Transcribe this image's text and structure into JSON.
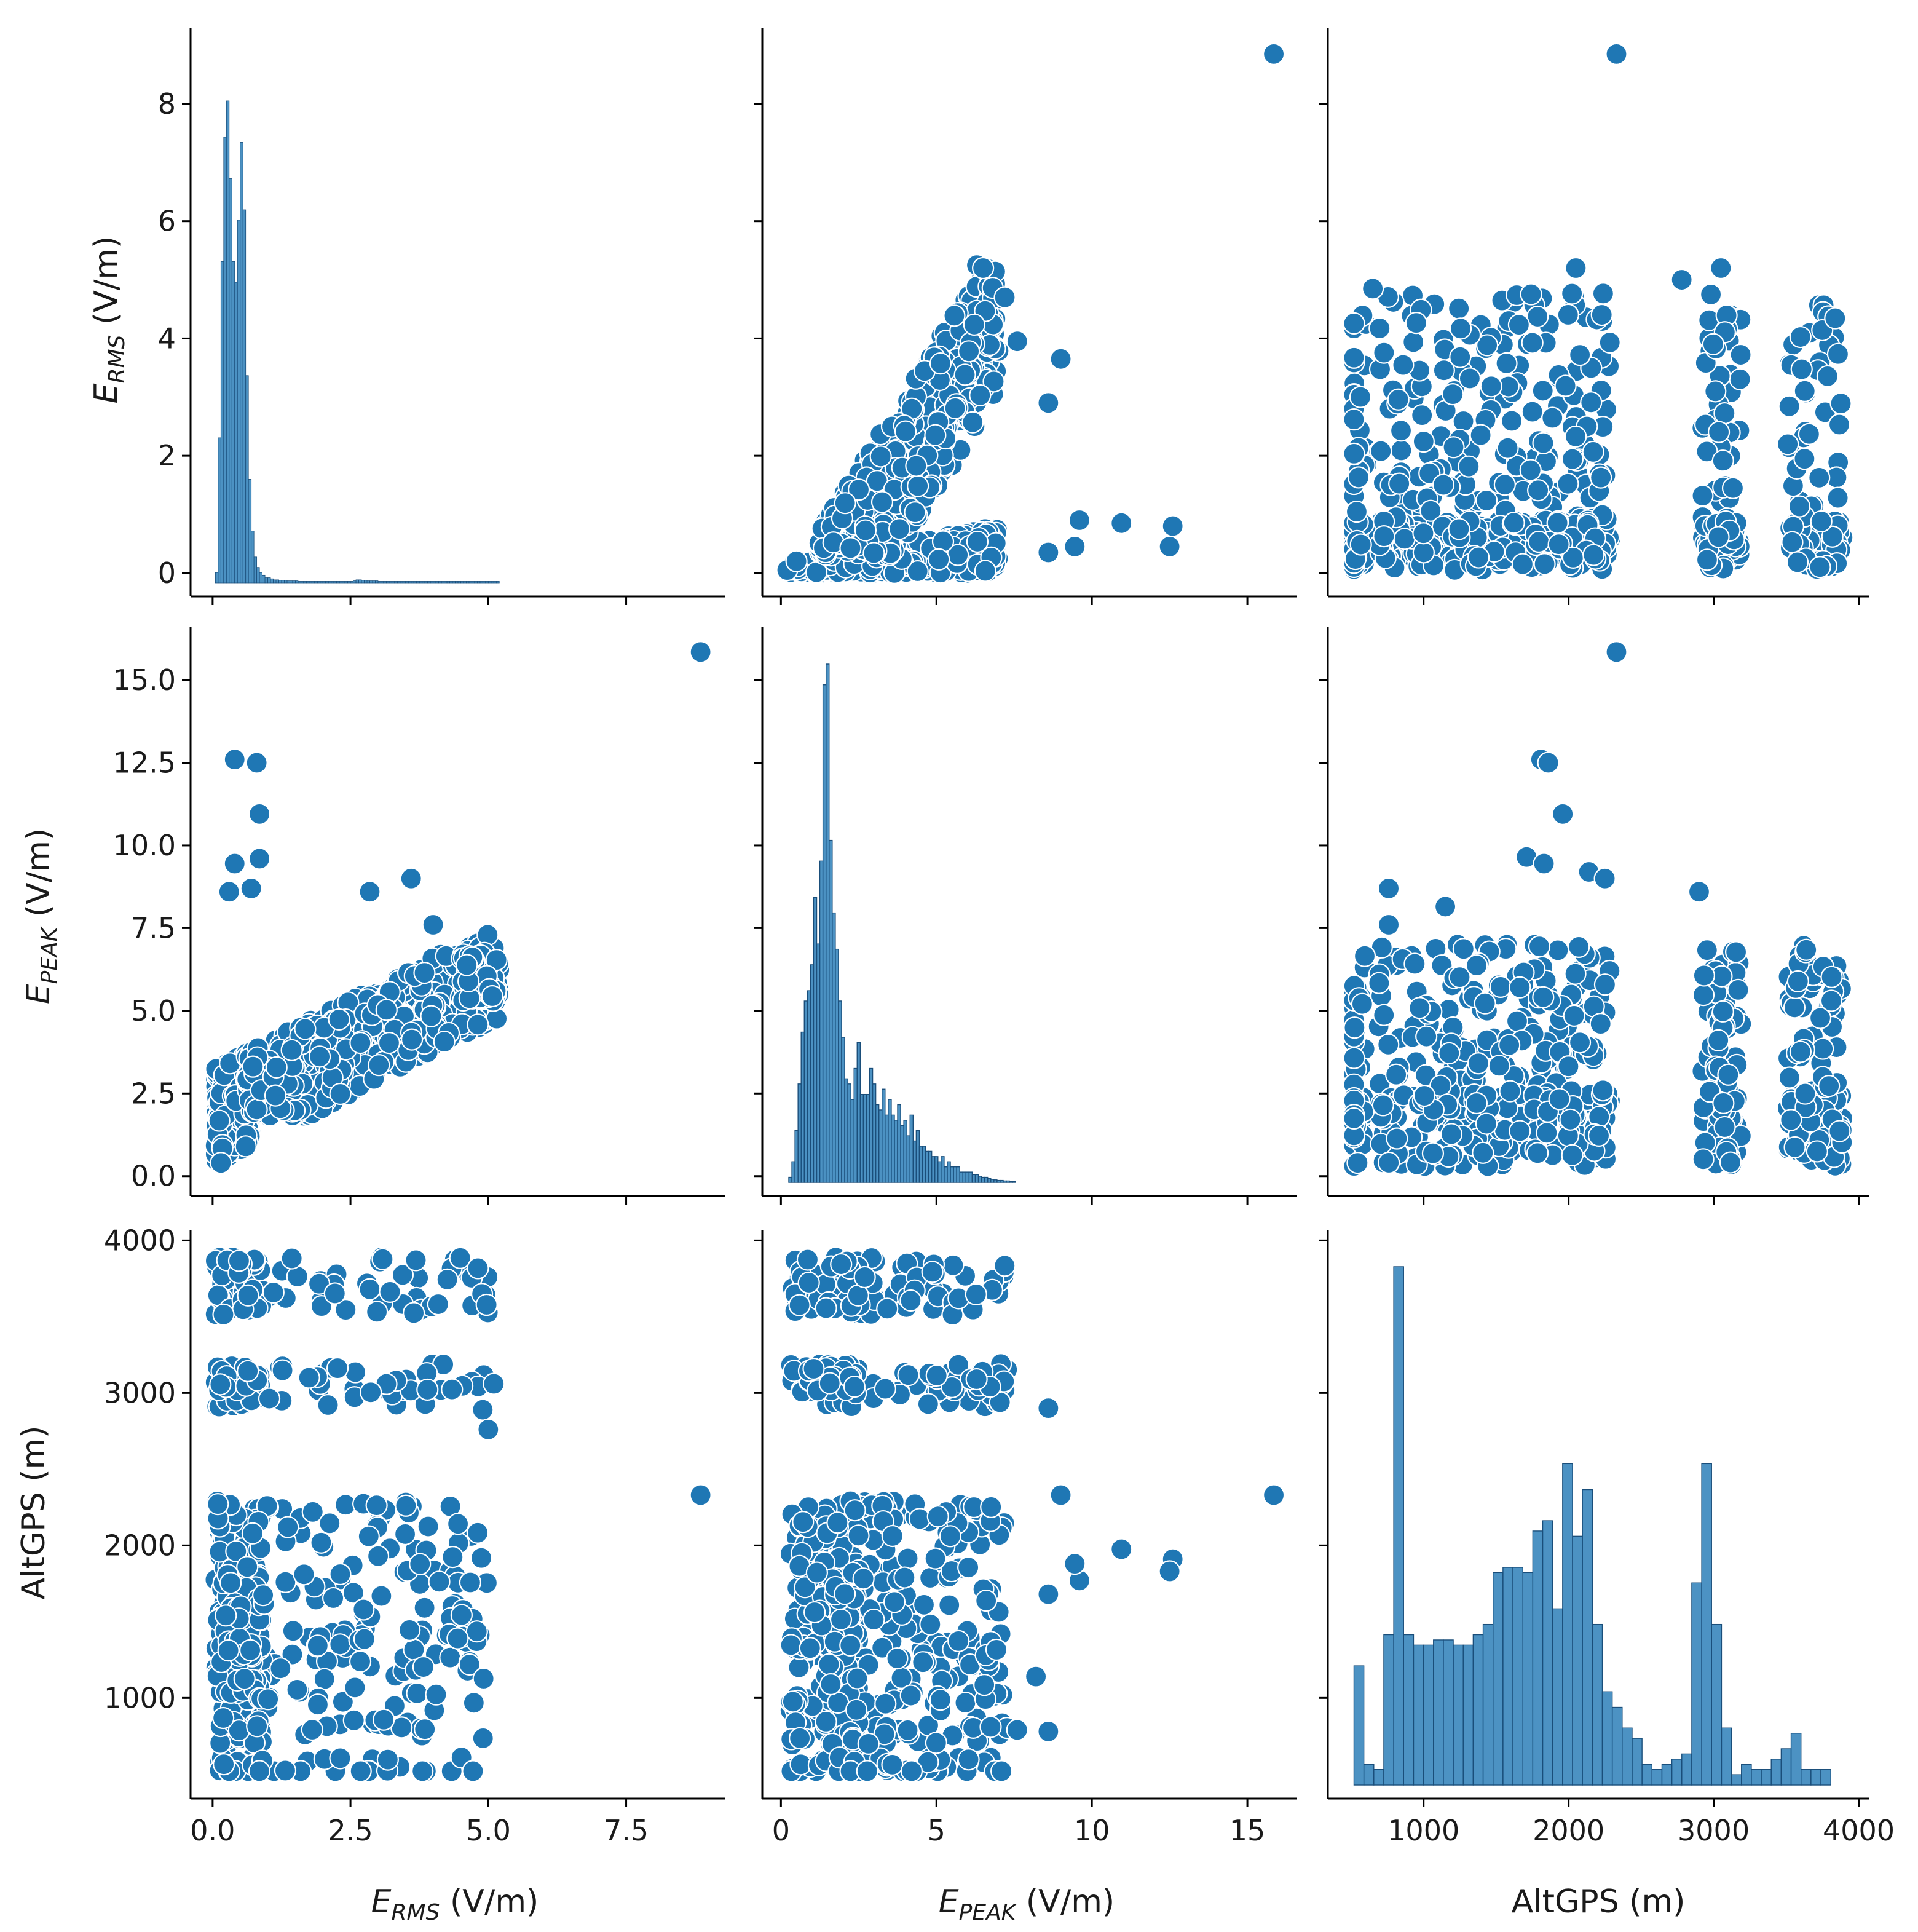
{
  "chart_data": {
    "type": "scatter",
    "title": "",
    "variables": [
      {
        "key": "erms",
        "label_main": "E",
        "label_sub": "RMS",
        "label_unit": " (V/m)",
        "ticks": [
          0.0,
          2.5,
          5.0,
          7.5
        ],
        "tick_labels": [
          "0.0",
          "2.5",
          "5.0",
          "7.5"
        ],
        "ytick_labels_fmt": [
          "0",
          "2",
          "4",
          "6",
          "8"
        ],
        "yticks": [
          0,
          2,
          4,
          6,
          8
        ],
        "lim": [
          -0.4,
          9.3
        ]
      },
      {
        "key": "epeak",
        "label_main": "E",
        "label_sub": "PEAK",
        "label_unit": " (V/m)",
        "ticks": [
          0,
          5,
          10,
          15
        ],
        "tick_labels": [
          "0",
          "5",
          "10",
          "15"
        ],
        "yticks": [
          0.0,
          2.5,
          5.0,
          7.5,
          10.0,
          12.5,
          15.0
        ],
        "ytick_labels_fmt": [
          "0.0",
          "2.5",
          "5.0",
          "7.5",
          "10.0",
          "12.5",
          "15.0"
        ],
        "lim": [
          -0.6,
          16.6
        ]
      },
      {
        "key": "alt",
        "label_main": "AltGPS (m)",
        "label_sub": "",
        "label_unit": "",
        "ticks": [
          1000,
          2000,
          3000,
          4000
        ],
        "tick_labels": [
          "1000",
          "2000",
          "3000",
          "4000"
        ],
        "yticks": [
          1000,
          2000,
          3000,
          4000
        ],
        "ytick_labels_fmt": [
          "1000",
          "2000",
          "3000",
          "4000"
        ],
        "lim": [
          340,
          4070
        ]
      }
    ],
    "histograms": {
      "erms": {
        "bin_start": 0.0,
        "bin_width": 0.05,
        "counts_scaled": [
          0.0,
          0.02,
          0.28,
          0.62,
          0.86,
          0.93,
          0.78,
          0.62,
          0.58,
          0.7,
          0.85,
          0.72,
          0.4,
          0.2,
          0.1,
          0.05,
          0.03,
          0.02,
          0.015,
          0.01,
          0.01,
          0.008,
          0.006,
          0.006,
          0.005,
          0.005,
          0.005,
          0.004,
          0.004,
          0.004,
          0.004,
          0.003,
          0.003,
          0.003,
          0.003,
          0.003,
          0.003,
          0.003,
          0.003,
          0.003,
          0.003,
          0.003,
          0.003,
          0.003,
          0.003,
          0.003,
          0.003,
          0.003,
          0.003,
          0.003,
          0.003,
          0.004,
          0.006,
          0.006,
          0.005,
          0.005,
          0.004,
          0.004,
          0.004,
          0.004,
          0.003,
          0.003,
          0.003,
          0.003,
          0.003,
          0.003,
          0.003,
          0.003,
          0.003,
          0.003,
          0.003,
          0.003,
          0.003,
          0.003,
          0.003,
          0.003,
          0.003,
          0.003,
          0.003,
          0.003,
          0.003,
          0.003,
          0.003,
          0.003,
          0.003,
          0.003,
          0.003,
          0.003,
          0.003,
          0.003,
          0.003,
          0.003,
          0.003,
          0.003,
          0.003,
          0.003,
          0.003,
          0.003,
          0.003,
          0.003,
          0.003,
          0.003,
          0.003,
          0.003
        ],
        "peak_value": 4.0
      },
      "epeak": {
        "bin_start": 0.25,
        "bin_width": 0.1,
        "counts_scaled": [
          0.01,
          0.04,
          0.1,
          0.19,
          0.29,
          0.35,
          0.37,
          0.42,
          0.55,
          0.46,
          0.62,
          0.96,
          1.0,
          0.66,
          0.52,
          0.45,
          0.35,
          0.28,
          0.2,
          0.19,
          0.16,
          0.22,
          0.27,
          0.17,
          0.17,
          0.17,
          0.22,
          0.19,
          0.15,
          0.14,
          0.18,
          0.13,
          0.16,
          0.13,
          0.12,
          0.15,
          0.11,
          0.12,
          0.09,
          0.13,
          0.08,
          0.1,
          0.07,
          0.07,
          0.06,
          0.06,
          0.05,
          0.05,
          0.04,
          0.05,
          0.03,
          0.04,
          0.03,
          0.03,
          0.03,
          0.02,
          0.02,
          0.02,
          0.02,
          0.015,
          0.015,
          0.012,
          0.01,
          0.01,
          0.008,
          0.006,
          0.005,
          0.004,
          0.004,
          0.003,
          0.003,
          0.002,
          0.002
        ]
      },
      "alt": {
        "bin_start": 520,
        "bin_width": 68.5,
        "counts_scaled": [
          0.23,
          0.04,
          0.03,
          0.29,
          1.0,
          0.29,
          0.27,
          0.27,
          0.28,
          0.28,
          0.27,
          0.27,
          0.29,
          0.31,
          0.41,
          0.42,
          0.42,
          0.41,
          0.49,
          0.51,
          0.34,
          0.62,
          0.48,
          0.57,
          0.31,
          0.18,
          0.15,
          0.11,
          0.09,
          0.04,
          0.03,
          0.04,
          0.05,
          0.06,
          0.39,
          0.62,
          0.31,
          0.11,
          0.02,
          0.04,
          0.03,
          0.03,
          0.05,
          0.07,
          0.1,
          0.03,
          0.03,
          0.03
        ]
      }
    },
    "scatter_clusters": {
      "erms_vs_epeak": [
        {
          "x": [
            0.05,
            0.7
          ],
          "y": [
            0.2,
            6.8
          ],
          "n": 420
        },
        {
          "x": [
            0.6,
            5.2
          ],
          "y": [
            1.8,
            7.3
          ],
          "n": 520
        },
        {
          "x": [
            4.5,
            5.2
          ],
          "y": [
            5.3,
            6.8
          ],
          "n": 60
        }
      ],
      "erms_outliers": [
        [
          8.85,
          15.85
        ],
        [
          0.4,
          12.6
        ],
        [
          0.8,
          12.5
        ],
        [
          0.85,
          10.95
        ],
        [
          0.85,
          9.6
        ],
        [
          0.4,
          9.45
        ],
        [
          0.3,
          8.6
        ],
        [
          2.85,
          8.6
        ],
        [
          3.6,
          9.0
        ],
        [
          0.7,
          8.7
        ],
        [
          4.0,
          7.6
        ],
        [
          0.15,
          0.4
        ],
        [
          0.6,
          0.9
        ]
      ],
      "epeak_vs_erms": [
        {
          "x": [
            0.3,
            7.0
          ],
          "y": [
            0.0,
            0.9
          ],
          "n": 500
        },
        {
          "x": [
            1.2,
            7.0
          ],
          "y": [
            0.5,
            5.2
          ],
          "n": 520
        }
      ],
      "epeak_outliers": [
        [
          15.85,
          8.85
        ],
        [
          12.6,
          0.8
        ],
        [
          12.5,
          0.45
        ],
        [
          10.95,
          0.85
        ],
        [
          9.6,
          0.9
        ],
        [
          9.45,
          0.45
        ],
        [
          8.6,
          0.35
        ],
        [
          8.6,
          2.9
        ],
        [
          9.0,
          3.65
        ],
        [
          7.6,
          3.95
        ],
        [
          6.3,
          5.25
        ],
        [
          6.5,
          5.2
        ],
        [
          7.2,
          4.7
        ],
        [
          0.2,
          0.05
        ],
        [
          0.5,
          0.2
        ]
      ],
      "alt_bands": [
        520,
        780,
        1000,
        1200,
        1400,
        1600,
        1800,
        2000,
        2200,
        3000,
        3100,
        3600,
        3800
      ]
    },
    "outliers_alt": [
      [
        8.85,
        2330
      ],
      [
        15.85,
        2330
      ]
    ]
  },
  "labels": {
    "x0": "E",
    "x0_sub": "RMS",
    "x0_unit": " (V/m)",
    "x1": "E",
    "x1_sub": "PEAK",
    "x1_unit": " (V/m)",
    "x2": "AltGPS (m)",
    "y0": "E",
    "y0_sub": "RMS",
    "y0_unit": " (V/m)",
    "y1": "E",
    "y1_sub": "PEAK",
    "y1_unit": " (V/m)",
    "y2": "AltGPS (m)"
  },
  "colors": {
    "accent": "#1f77b4",
    "edge": "#ffffff"
  }
}
